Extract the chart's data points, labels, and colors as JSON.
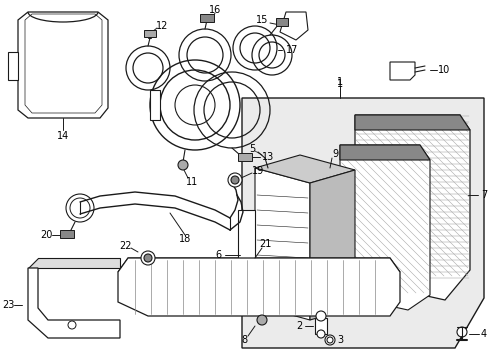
{
  "bg_color": "#ffffff",
  "line_color": "#1a1a1a",
  "gray_fill": "#e8e8e8",
  "dark_gray": "#888888",
  "fig_width": 4.89,
  "fig_height": 3.6,
  "dpi": 100
}
